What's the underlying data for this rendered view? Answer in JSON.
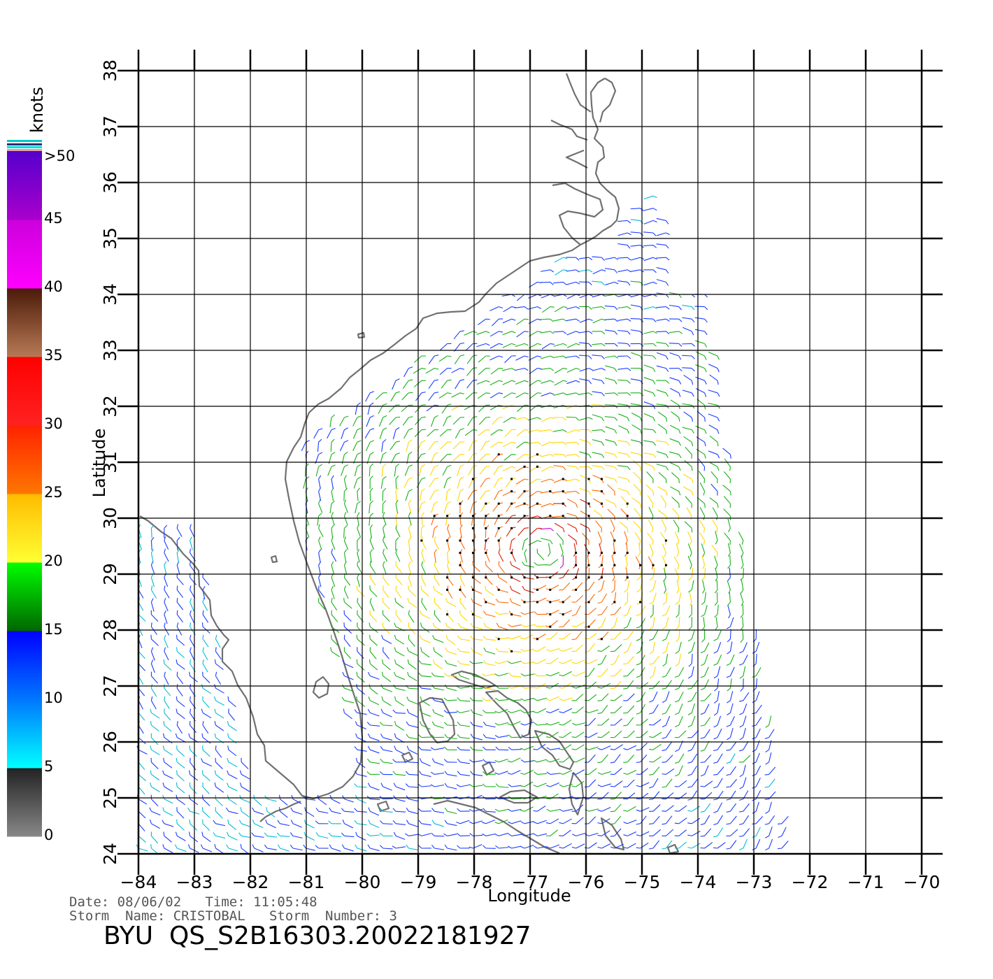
{
  "map": {
    "lon_range": [
      -84,
      -70
    ],
    "lat_range": [
      24,
      38
    ],
    "lon_ticks": [
      "-84",
      "-83",
      "-82",
      "-81",
      "-80",
      "-79",
      "-78",
      "-77",
      "-76",
      "-75",
      "-74",
      "-73",
      "-72",
      "-71",
      "-70"
    ],
    "lat_ticks": [
      "24",
      "25",
      "26",
      "27",
      "28",
      "29",
      "30",
      "31",
      "32",
      "33",
      "34",
      "35",
      "36",
      "37",
      "38"
    ],
    "xlabel": "Longitude",
    "ylabel": "Latitude",
    "grid": true,
    "coast_color": "#707070",
    "storm_center": {
      "lon": -76.8,
      "lat": 29.4
    }
  },
  "colorbar": {
    "title": "knots",
    "labels": [
      "0",
      "5",
      "10",
      "15",
      "20",
      "25",
      "30",
      "35",
      "40",
      "45",
      ">50"
    ],
    "bands": [
      {
        "from": 0,
        "to": 5,
        "colors": [
          "#888888",
          "#222222"
        ]
      },
      {
        "from": 5,
        "to": 10,
        "colors": [
          "#00ffff",
          "#0077ff"
        ]
      },
      {
        "from": 10,
        "to": 15,
        "colors": [
          "#0077ff",
          "#0000ff"
        ]
      },
      {
        "from": 15,
        "to": 20,
        "colors": [
          "#006600",
          "#00ff00"
        ]
      },
      {
        "from": 20,
        "to": 25,
        "colors": [
          "#ffff33",
          "#ffbb00"
        ]
      },
      {
        "from": 25,
        "to": 30,
        "colors": [
          "#ff7700",
          "#ff2200"
        ]
      },
      {
        "from": 30,
        "to": 35,
        "colors": [
          "#ff2222",
          "#ff0000"
        ]
      },
      {
        "from": 35,
        "to": 40,
        "colors": [
          "#b87a55",
          "#4a1a08"
        ]
      },
      {
        "from": 40,
        "to": 45,
        "colors": [
          "#ff00ff",
          "#cc00dd"
        ]
      },
      {
        "from": 45,
        "to": 50,
        "colors": [
          "#aa00cc",
          "#5500cc"
        ]
      }
    ]
  },
  "info": {
    "line1": "Date: 08/06/02   Time: 11:05:48",
    "line2": "Storm  Name: CRISTOBAL   Storm  Number: 3",
    "file_id": "BYU  QS_S2B16303.20022181927"
  }
}
